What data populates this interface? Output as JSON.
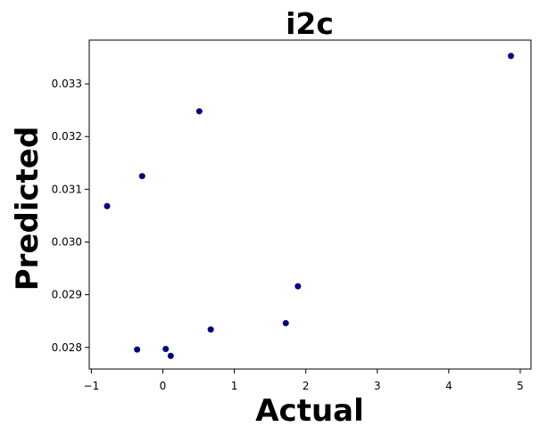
{
  "chart_data": {
    "type": "scatter",
    "title": "i2c",
    "xlabel": "Actual",
    "ylabel": "Predicted",
    "xlim": [
      -1.03,
      5.15
    ],
    "ylim": [
      0.02759,
      0.03383
    ],
    "xticks": [
      -1,
      0,
      1,
      2,
      3,
      4,
      5
    ],
    "xtick_labels": [
      "−1",
      "0",
      "1",
      "2",
      "3",
      "4",
      "5"
    ],
    "yticks": [
      0.028,
      0.029,
      0.03,
      0.031,
      0.032,
      0.033
    ],
    "ytick_labels": [
      "0.028",
      "0.029",
      "0.030",
      "0.031",
      "0.032",
      "0.033"
    ],
    "grid": false,
    "marker_color": "#00007f",
    "points": [
      {
        "x": -0.78,
        "y": 0.03068
      },
      {
        "x": -0.29,
        "y": 0.03125
      },
      {
        "x": -0.36,
        "y": 0.02796
      },
      {
        "x": 0.04,
        "y": 0.02797
      },
      {
        "x": 0.11,
        "y": 0.02784
      },
      {
        "x": 0.51,
        "y": 0.03248
      },
      {
        "x": 0.67,
        "y": 0.02834
      },
      {
        "x": 1.72,
        "y": 0.02846
      },
      {
        "x": 1.89,
        "y": 0.02916
      },
      {
        "x": 4.87,
        "y": 0.03353
      }
    ]
  }
}
